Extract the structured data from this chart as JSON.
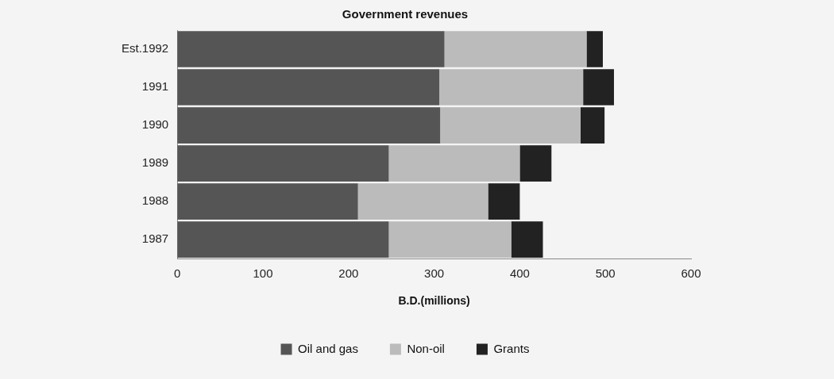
{
  "chart_data": {
    "type": "bar",
    "orientation": "horizontal",
    "stacked": true,
    "title": "Government revenues",
    "xlabel": "B.D.(millions)",
    "categories": [
      "Est.1992",
      "1991",
      "1990",
      "1989",
      "1988",
      "1987"
    ],
    "series": [
      {
        "name": "Oil and gas",
        "color": "#555555",
        "values": [
          312,
          306,
          307,
          247,
          211,
          247
        ]
      },
      {
        "name": "Non-oil",
        "color": "#bbbbbb",
        "values": [
          166,
          168,
          164,
          153,
          152,
          143
        ]
      },
      {
        "name": "Grants",
        "color": "#222222",
        "values": [
          19,
          36,
          28,
          37,
          37,
          37
        ]
      }
    ],
    "xlim": [
      0,
      600
    ],
    "xticks": [
      0,
      100,
      200,
      300,
      400,
      500,
      600
    ],
    "grid": false,
    "legend": "bottom"
  }
}
